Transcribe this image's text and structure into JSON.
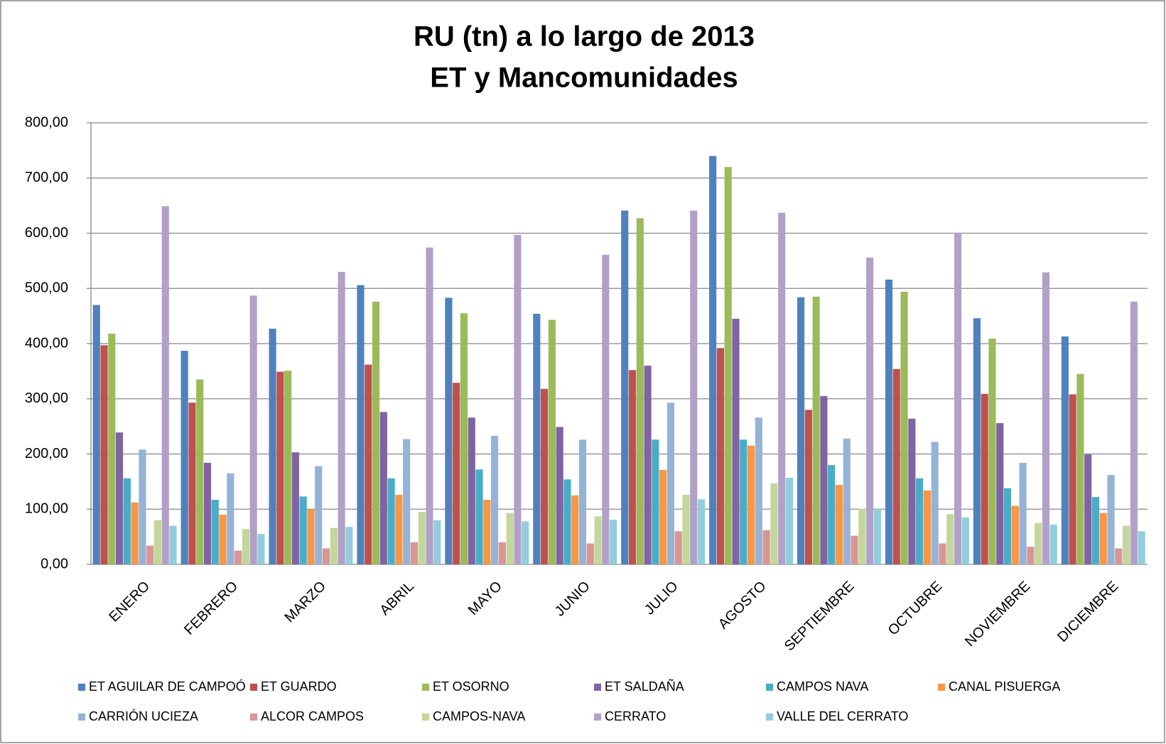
{
  "chart_data": {
    "type": "bar",
    "title": [
      "RU (tn) a lo largo de 2013",
      "ET y Mancomunidades"
    ],
    "categories": [
      "ENERO",
      "FEBRERO",
      "MARZO",
      "ABRIL",
      "MAYO",
      "JUNIO",
      "JULIO",
      "AGOSTO",
      "SEPTIEMBRE",
      "OCTUBRE",
      "NOVIEMBRE",
      "DICIEMBRE"
    ],
    "series": [
      {
        "name": "ET AGUILAR DE CAMPOÓ",
        "color": "#4F81BD",
        "values": [
          470,
          387,
          427,
          506,
          483,
          454,
          641,
          740,
          484,
          516,
          446,
          413
        ]
      },
      {
        "name": "ET GUARDO",
        "color": "#C0504D",
        "values": [
          397,
          293,
          349,
          362,
          329,
          318,
          352,
          392,
          280,
          354,
          309,
          308
        ]
      },
      {
        "name": "ET OSORNO",
        "color": "#9BBB59",
        "values": [
          418,
          335,
          351,
          476,
          455,
          443,
          627,
          720,
          485,
          494,
          409,
          345
        ]
      },
      {
        "name": "ET SALDAÑA",
        "color": "#8064A2",
        "values": [
          239,
          184,
          203,
          276,
          266,
          249,
          360,
          445,
          305,
          264,
          256,
          199
        ]
      },
      {
        "name": "CAMPOS NAVA",
        "color": "#4BACC6",
        "values": [
          156,
          117,
          123,
          156,
          172,
          154,
          226,
          226,
          180,
          156,
          138,
          122
        ]
      },
      {
        "name": "CANAL PISUERGA",
        "color": "#F79646",
        "values": [
          112,
          90,
          100,
          126,
          117,
          125,
          171,
          215,
          144,
          134,
          106,
          93
        ]
      },
      {
        "name": "CARRIÓN UCIEZA",
        "color": "#95B3D7",
        "values": [
          208,
          165,
          178,
          227,
          233,
          226,
          293,
          266,
          228,
          222,
          184,
          162
        ]
      },
      {
        "name": "ALCOR CAMPOS",
        "color": "#D99694",
        "values": [
          34,
          25,
          29,
          40,
          40,
          38,
          60,
          62,
          52,
          38,
          32,
          29
        ]
      },
      {
        "name": "CAMPOS-NAVA",
        "color": "#C3D69B",
        "values": [
          80,
          64,
          66,
          95,
          93,
          87,
          126,
          147,
          101,
          91,
          75,
          70
        ]
      },
      {
        "name": "CERRATO",
        "color": "#B2A1C7",
        "values": [
          649,
          487,
          530,
          574,
          597,
          561,
          641,
          637,
          556,
          601,
          529,
          476
        ]
      },
      {
        "name": "VALLE DEL CERRATO",
        "color": "#93CDDD",
        "values": [
          70,
          55,
          68,
          80,
          78,
          81,
          118,
          157,
          100,
          85,
          72,
          60
        ]
      }
    ],
    "ylim": [
      0,
      800
    ],
    "yticks": [
      {
        "value": 0,
        "label": "0,00"
      },
      {
        "value": 100,
        "label": "100,00"
      },
      {
        "value": 200,
        "label": "200,00"
      },
      {
        "value": 300,
        "label": "300,00"
      },
      {
        "value": 400,
        "label": "400,00"
      },
      {
        "value": 500,
        "label": "500,00"
      },
      {
        "value": 600,
        "label": "600,00"
      },
      {
        "value": 700,
        "label": "700,00"
      },
      {
        "value": 800,
        "label": "800,00"
      }
    ],
    "grid": true,
    "legend": "bottom"
  }
}
